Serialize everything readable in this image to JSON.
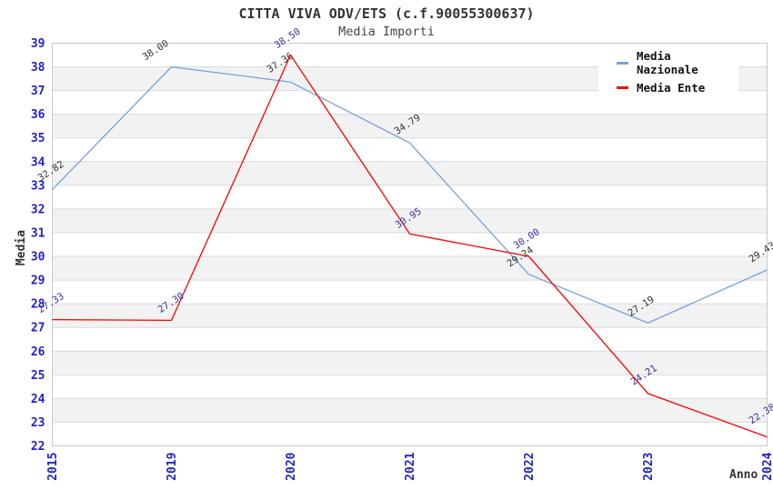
{
  "chart_data": {
    "type": "line",
    "title": "CITTA VIVA ODV/ETS (c.f.90055300637)",
    "subtitle": "Media Importi",
    "xlabel": "Anno",
    "ylabel": "Media",
    "ylim": [
      22,
      39
    ],
    "y_tick_step": 1,
    "grid": "horizontal-only",
    "alternating_bands": true,
    "legend_position": "top-right",
    "point_markers": false,
    "data_label_decimals": 2,
    "categories": [
      "2015",
      "2019",
      "2020",
      "2021",
      "2022",
      "2023",
      "2024"
    ],
    "series": [
      {
        "name": "Media Nazionale",
        "color": "#74A3D8",
        "label_color": "#333333",
        "values": [
          32.82,
          38.0,
          37.36,
          34.79,
          29.24,
          27.19,
          29.43
        ]
      },
      {
        "name": "Media Ente",
        "color": "#FF0000",
        "label_color": "#333399",
        "values": [
          27.33,
          27.3,
          38.5,
          30.95,
          30.0,
          24.21,
          22.38
        ]
      }
    ],
    "colors": {
      "tick_label": "#2222CC",
      "band": "#F2F2F2",
      "gridline": "#DBDBDB",
      "plot_border": "#C9C9C9",
      "title": "#333333",
      "subtitle": "#444444",
      "axis_title": "#333333",
      "legend_text": "#111111",
      "background": "#FFFFFF"
    }
  }
}
